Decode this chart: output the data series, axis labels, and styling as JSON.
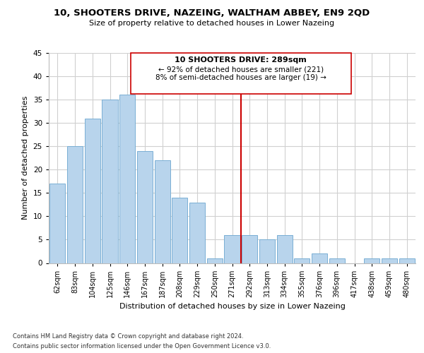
{
  "title1": "10, SHOOTERS DRIVE, NAZEING, WALTHAM ABBEY, EN9 2QD",
  "title2": "Size of property relative to detached houses in Lower Nazeing",
  "xlabel": "Distribution of detached houses by size in Lower Nazeing",
  "ylabel": "Number of detached properties",
  "categories": [
    "62sqm",
    "83sqm",
    "104sqm",
    "125sqm",
    "146sqm",
    "167sqm",
    "187sqm",
    "208sqm",
    "229sqm",
    "250sqm",
    "271sqm",
    "292sqm",
    "313sqm",
    "334sqm",
    "355sqm",
    "376sqm",
    "396sqm",
    "417sqm",
    "438sqm",
    "459sqm",
    "480sqm"
  ],
  "values": [
    17,
    25,
    31,
    35,
    36,
    24,
    22,
    14,
    13,
    1,
    6,
    6,
    5,
    6,
    1,
    2,
    1,
    0,
    1,
    1,
    1
  ],
  "bar_color": "#b8d4ec",
  "bar_edge_color": "#7aafd4",
  "vline_color": "#cc0000",
  "ylim": [
    0,
    45
  ],
  "yticks": [
    0,
    5,
    10,
    15,
    20,
    25,
    30,
    35,
    40,
    45
  ],
  "annotation_title": "10 SHOOTERS DRIVE: 289sqm",
  "annotation_line1": "← 92% of detached houses are smaller (221)",
  "annotation_line2": "8% of semi-detached houses are larger (19) →",
  "footer1": "Contains HM Land Registry data © Crown copyright and database right 2024.",
  "footer2": "Contains public sector information licensed under the Open Government Licence v3.0.",
  "background_color": "#ffffff",
  "grid_color": "#d0d0d0"
}
